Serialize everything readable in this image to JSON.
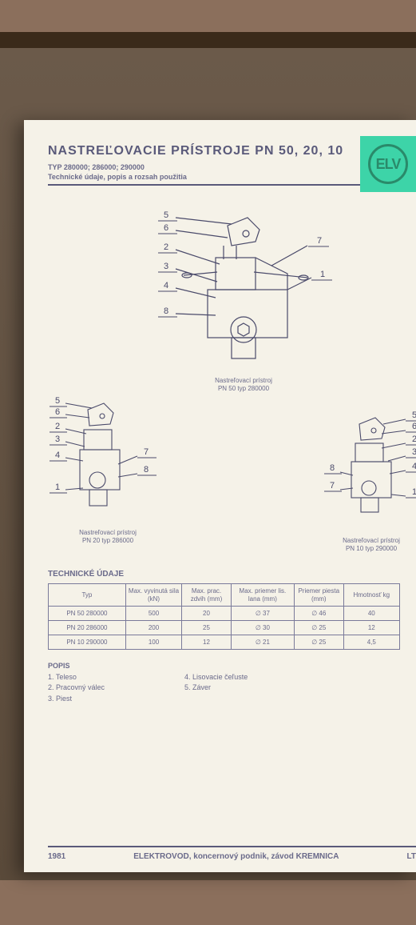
{
  "logo": {
    "text": "ELV",
    "bg": "#3dd4a8",
    "fg": "#2a8a6a"
  },
  "header": {
    "title": "NASTREĽOVACIE PRÍSTROJE PN 50, 20, 10",
    "subtitle": "TYP 280000; 286000; 290000",
    "subdesc": "Technické údaje, popis a rozsah použitia"
  },
  "diagrams": {
    "large": {
      "caption_l1": "Nastreľovací prístroj",
      "caption_l2": "PN 50 typ 280000",
      "callouts_left": [
        "5",
        "6",
        "2",
        "3",
        "4",
        "8"
      ],
      "callouts_right": [
        "7",
        "1"
      ]
    },
    "left": {
      "caption_l1": "Nastreľovací prístroj",
      "caption_l2": "PN 20 typ 286000",
      "callouts_left": [
        "5",
        "6",
        "2",
        "3",
        "4",
        "1"
      ],
      "callouts_right": [
        "7",
        "8"
      ]
    },
    "right": {
      "caption_l1": "Nastreľovací prístroj",
      "caption_l2": "PN 10 typ 290000",
      "callouts_left": [
        "8",
        "7"
      ],
      "callouts_right": [
        "5",
        "6",
        "2",
        "3",
        "4",
        "1"
      ]
    }
  },
  "table": {
    "section": "TECHNICKÉ ÚDAJE",
    "columns": [
      "Typ",
      "Max. vyvinutá sila (kN)",
      "Max. prac. zdvih (mm)",
      "Max. priemer lis. lana (mm)",
      "Priemer piesta (mm)",
      "Hmotnosť kg"
    ],
    "rows": [
      [
        "PN 50 280000",
        "500",
        "20",
        "∅ 37",
        "∅ 46",
        "40"
      ],
      [
        "PN 20 286000",
        "200",
        "25",
        "∅ 30",
        "∅ 25",
        "12"
      ],
      [
        "PN 10 290000",
        "100",
        "12",
        "∅ 21",
        "∅ 25",
        "4,5"
      ]
    ],
    "col_widths": [
      "22%",
      "16%",
      "14%",
      "18%",
      "14%",
      "16%"
    ]
  },
  "popis": {
    "title": "POPIS",
    "col1": [
      "1. Teleso",
      "2. Pracovný válec",
      "3. Piest"
    ],
    "col2": [
      "4. Lisovacie čeľuste",
      "5. Záver"
    ]
  },
  "footer": {
    "year": "1981",
    "org": "ELEKTROVOD, koncernový podnik, závod KREMNICA",
    "code": "LT"
  }
}
